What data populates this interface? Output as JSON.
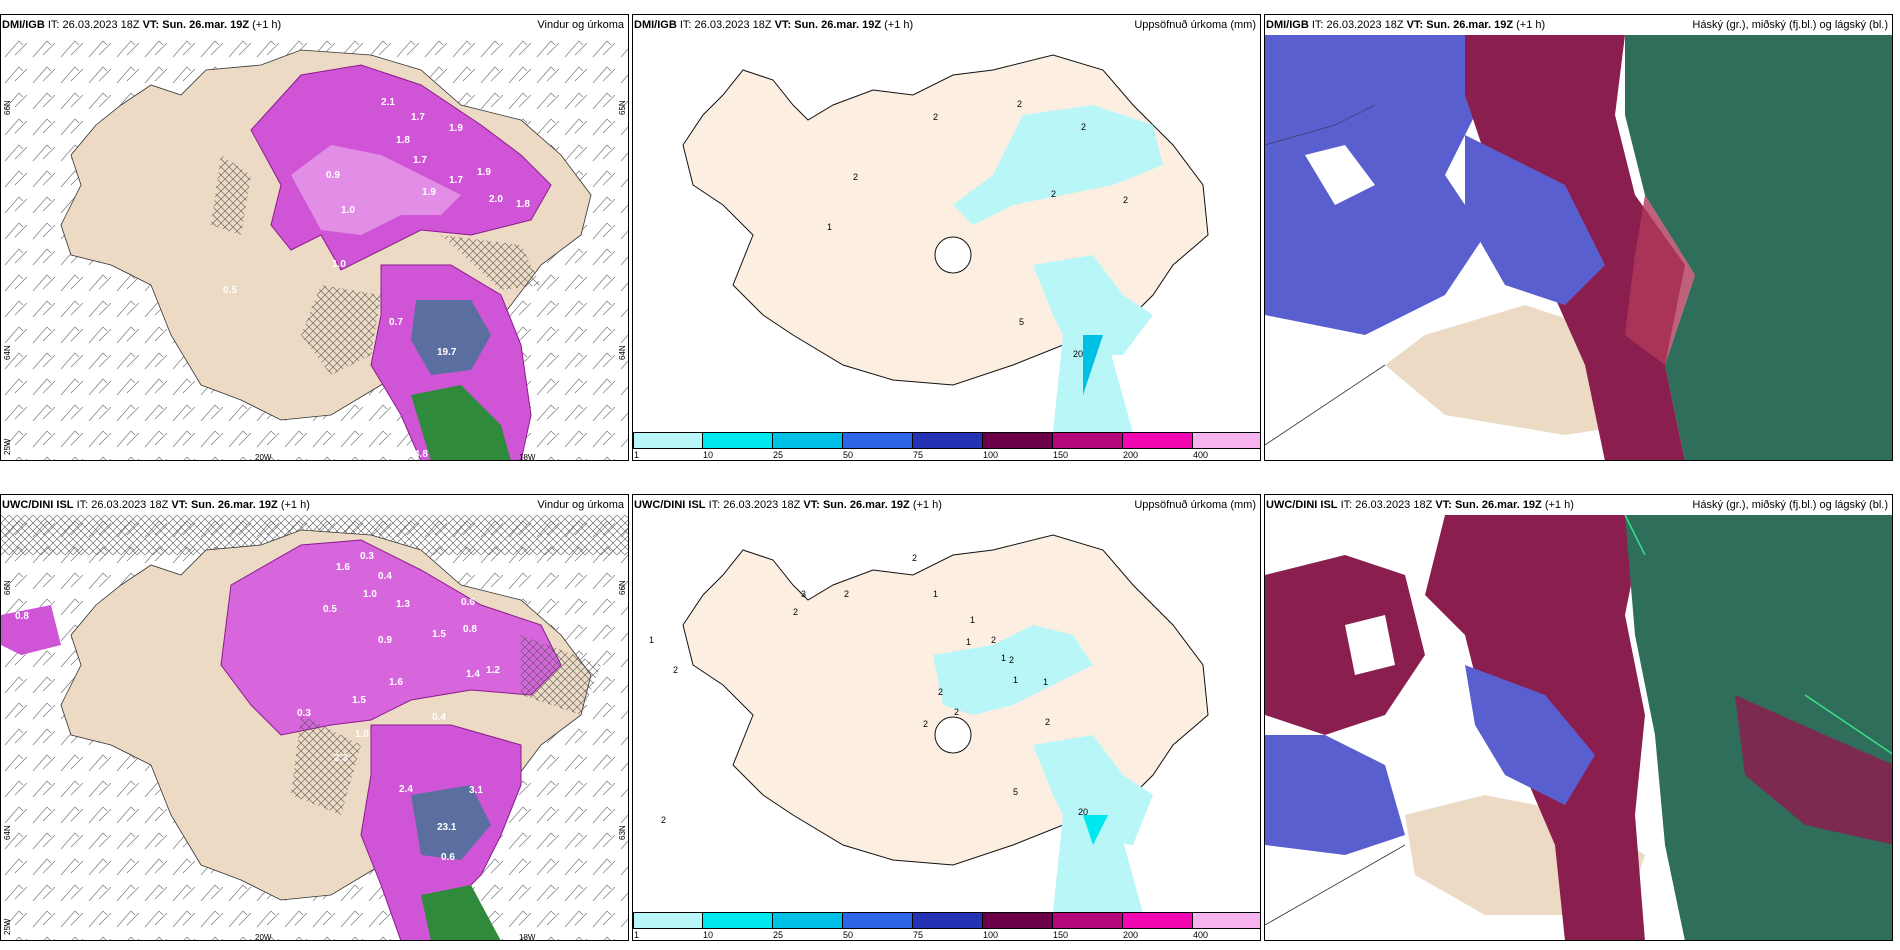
{
  "panels": {
    "p1": {
      "model": "DMI/IGB",
      "it_label": "IT:",
      "it": "26.03.2023 18Z",
      "vt_label": "VT:",
      "vt": "Sun. 26.mar. 19Z",
      "offset": "(+1 h)",
      "product": "Vindur og úrkoma"
    },
    "p2": {
      "model": "DMI/IGB",
      "it_label": "IT:",
      "it": "26.03.2023 18Z",
      "vt_label": "VT:",
      "vt": "Sun. 26.mar. 19Z",
      "offset": "(+1 h)",
      "product": "Uppsöfnuð úrkoma (mm)"
    },
    "p3": {
      "model": "DMI/IGB",
      "it_label": "IT:",
      "it": "26.03.2023 18Z",
      "vt_label": "VT:",
      "vt": "Sun. 26.mar. 19Z",
      "offset": "(+1 h)",
      "product": "Háský (gr.), miðský (fj.bl.) og lágský (bl.)"
    },
    "p4": {
      "model": "UWC/DINI ISL",
      "it_label": "IT:",
      "it": "26.03.2023 18Z",
      "vt_label": "VT:",
      "vt": "Sun. 26.mar. 19Z",
      "offset": "(+1 h)",
      "product": "Vindur og úrkoma"
    },
    "p5": {
      "model": "UWC/DINI ISL",
      "it_label": "IT:",
      "it": "26.03.2023 18Z",
      "vt_label": "VT:",
      "vt": "Sun. 26.mar. 19Z",
      "offset": "(+1 h)",
      "product": "Uppsöfnuð úrkoma (mm)"
    },
    "p6": {
      "model": "UWC/DINI ISL",
      "it_label": "IT:",
      "it": "26.03.2023 18Z",
      "vt_label": "VT:",
      "vt": "Sun. 26.mar. 19Z",
      "offset": "(+1 h)",
      "product": "Háský (gr.), miðský (fj.bl.) og lágský (bl.)"
    }
  },
  "axes": {
    "lat_66": "66N",
    "lat_64": "64N",
    "lat_65": "65N",
    "lat_63": "63N",
    "lon_20": "20W",
    "lon_18": "18W",
    "lon_25": "25W"
  },
  "colorbar": {
    "ticks": [
      "1",
      "10",
      "25",
      "50",
      "75",
      "100",
      "150",
      "200",
      "400"
    ],
    "colors": [
      "#b9f6f7",
      "#00e8ef",
      "#00c0e6",
      "#2e64e8",
      "#2432b4",
      "#6b0048",
      "#b3087c",
      "#f208b0",
      "#f7b4f0"
    ]
  },
  "values": {
    "p1": [
      "2.1",
      "1.7",
      "1.9",
      "1.8",
      "1.7",
      "0.9",
      "1.7",
      "1.9",
      "1.9",
      "2.0",
      "1.0",
      "1.8",
      "1.0",
      "0.5",
      "0.7",
      "19.7",
      "4.8"
    ],
    "p2": [
      "2",
      "2",
      "2",
      "2",
      "2",
      "2",
      "1",
      "5",
      "20"
    ],
    "p4": [
      "1.6",
      "0.3",
      "0.4",
      "1.0",
      "1.3",
      "1.5",
      "0.5",
      "0.6",
      "0.8",
      "1.2",
      "1.4",
      "0.9",
      "1.6",
      "2.3",
      "2.4",
      "3.1",
      "23.1",
      "0.6",
      "0.4",
      "0.3",
      "1.0",
      "0.8",
      "1.5"
    ],
    "p5": [
      "2",
      "2",
      "3",
      "2",
      "1",
      "1",
      "1",
      "2",
      "2",
      "1",
      "2",
      "1",
      "2",
      "2",
      "2",
      "5",
      "20",
      "2",
      "1",
      "1",
      "2"
    ]
  }
}
